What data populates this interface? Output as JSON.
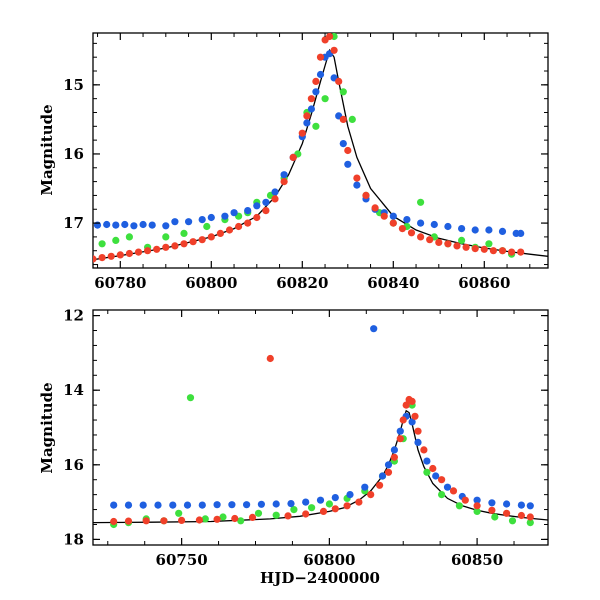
{
  "chart_data": [
    {
      "type": "scatter",
      "xlabel": "",
      "ylabel": "Magnitude",
      "xlim": [
        60774,
        60874
      ],
      "ylim": [
        17.65,
        14.25
      ],
      "y_inverted": true,
      "x_ticks": [
        60780,
        60800,
        60820,
        60840,
        60860
      ],
      "y_ticks": [
        15,
        16,
        17
      ],
      "colors": {
        "blue": "#1f5fe0",
        "green": "#3ee03e",
        "red": "#f0402a",
        "model": "#000000"
      },
      "series": [
        {
          "color": "blue",
          "x": [
            60775,
            60777,
            60779,
            60781,
            60783,
            60785,
            60787,
            60790,
            60792,
            60795,
            60798,
            60800,
            60803,
            60805,
            60808,
            60810,
            60812,
            60814,
            60816,
            60818,
            60820,
            60821,
            60822,
            60823,
            60824,
            60825,
            60826,
            60827,
            60828,
            60829,
            60830,
            60832,
            60834,
            60836,
            60838,
            60840,
            60843,
            60846,
            60849,
            60852,
            60855,
            60858,
            60861,
            60864,
            60867,
            60868
          ],
          "y": [
            17.03,
            17.02,
            17.03,
            17.02,
            17.04,
            17.02,
            17.03,
            17.04,
            16.98,
            16.98,
            16.95,
            16.92,
            16.9,
            16.85,
            16.82,
            16.75,
            16.7,
            16.55,
            16.3,
            16.05,
            15.75,
            15.55,
            15.35,
            15.1,
            14.85,
            14.6,
            14.55,
            14.9,
            15.45,
            15.85,
            16.15,
            16.45,
            16.65,
            16.8,
            16.85,
            16.9,
            16.95,
            17.0,
            17.02,
            17.05,
            17.08,
            17.1,
            17.1,
            17.12,
            17.15,
            17.15
          ]
        },
        {
          "color": "green",
          "x": [
            60776,
            60779,
            60782,
            60786,
            60790,
            60794,
            60799,
            60803,
            60806,
            60808,
            60810,
            60813,
            60816,
            60819,
            60821,
            60823,
            60825,
            60827,
            60829,
            60831,
            60834,
            60837,
            60840,
            60843,
            60846,
            60849,
            60852,
            60855,
            60858,
            60861,
            60864,
            60866
          ],
          "y": [
            17.3,
            17.25,
            17.2,
            17.35,
            17.2,
            17.15,
            17.05,
            16.95,
            16.9,
            16.85,
            16.7,
            16.6,
            16.35,
            16.0,
            15.4,
            15.6,
            15.2,
            14.3,
            15.1,
            15.5,
            16.6,
            16.85,
            17.0,
            17.05,
            16.7,
            17.2,
            17.3,
            17.25,
            17.35,
            17.3,
            17.4,
            17.45
          ]
        },
        {
          "color": "red",
          "x": [
            60774,
            60776,
            60778,
            60780,
            60782,
            60784,
            60786,
            60788,
            60790,
            60792,
            60794,
            60796,
            60798,
            60800,
            60802,
            60804,
            60806,
            60808,
            60810,
            60812,
            60814,
            60816,
            60818,
            60820,
            60821,
            60822,
            60823,
            60824,
            60825,
            60826,
            60827,
            60828,
            60829,
            60830,
            60832,
            60834,
            60836,
            60838,
            60840,
            60842,
            60844,
            60846,
            60848,
            60850,
            60852,
            60854,
            60856,
            60858,
            60860,
            60862,
            60864,
            60866,
            60868
          ],
          "y": [
            17.52,
            17.5,
            17.48,
            17.46,
            17.44,
            17.42,
            17.4,
            17.38,
            17.35,
            17.33,
            17.3,
            17.27,
            17.24,
            17.2,
            17.15,
            17.1,
            17.05,
            17.0,
            16.92,
            16.82,
            16.65,
            16.4,
            16.05,
            15.7,
            15.45,
            15.2,
            14.95,
            14.6,
            14.35,
            14.3,
            14.5,
            14.95,
            15.5,
            15.95,
            16.35,
            16.6,
            16.78,
            16.9,
            17.0,
            17.08,
            17.14,
            17.2,
            17.24,
            17.28,
            17.3,
            17.33,
            17.35,
            17.37,
            17.38,
            17.4,
            17.4,
            17.42,
            17.42
          ]
        },
        {
          "color": "model",
          "line": true,
          "x": [
            60774,
            60780,
            60790,
            60800,
            60805,
            60810,
            60814,
            60817,
            60820,
            60822,
            60824,
            60825,
            60826,
            60827,
            60828,
            60830,
            60832,
            60835,
            60840,
            60845,
            60850,
            60855,
            60860,
            60865,
            60870,
            60874
          ],
          "y": [
            17.53,
            17.47,
            17.36,
            17.2,
            17.08,
            16.9,
            16.62,
            16.3,
            15.85,
            15.42,
            14.95,
            14.72,
            14.5,
            14.6,
            14.95,
            15.6,
            16.05,
            16.5,
            16.9,
            17.1,
            17.22,
            17.3,
            17.36,
            17.41,
            17.45,
            17.48
          ]
        }
      ]
    },
    {
      "type": "scatter",
      "xlabel": "HJD−2400000",
      "ylabel": "Magnitude",
      "xlim": [
        60720,
        60874
      ],
      "ylim": [
        18.15,
        11.85
      ],
      "y_inverted": true,
      "x_ticks": [
        60750,
        60800,
        60850
      ],
      "y_ticks": [
        12,
        14,
        16,
        18
      ],
      "colors": {
        "blue": "#1f5fe0",
        "green": "#3ee03e",
        "red": "#f0402a",
        "model": "#000000"
      },
      "series": [
        {
          "color": "blue",
          "x": [
            60727,
            60732,
            60737,
            60742,
            60747,
            60752,
            60757,
            60762,
            60767,
            60772,
            60777,
            60782,
            60787,
            60792,
            60797,
            60802,
            60807,
            60812,
            60815,
            60818,
            60820,
            60822,
            60824,
            60826,
            60828,
            60830,
            60833,
            60836,
            60840,
            60845,
            60850,
            60855,
            60860,
            60865,
            60868
          ],
          "y": [
            17.08,
            17.08,
            17.08,
            17.08,
            17.08,
            17.08,
            17.08,
            17.07,
            17.07,
            17.07,
            17.06,
            17.05,
            17.04,
            17.0,
            16.95,
            16.88,
            16.8,
            16.6,
            12.35,
            16.3,
            16.0,
            15.6,
            15.1,
            14.7,
            14.85,
            15.4,
            15.9,
            16.3,
            16.6,
            16.85,
            16.95,
            17.02,
            17.05,
            17.08,
            17.1
          ]
        },
        {
          "color": "green",
          "x": [
            60727,
            60732,
            60738,
            60744,
            60749,
            60753,
            60758,
            60764,
            60770,
            60776,
            60782,
            60788,
            60794,
            60800,
            60806,
            60812,
            60818,
            60822,
            60825,
            60828,
            60833,
            60838,
            60844,
            60850,
            60856,
            60862,
            60868
          ],
          "y": [
            17.6,
            17.55,
            17.45,
            17.5,
            17.3,
            14.2,
            17.45,
            17.4,
            17.5,
            17.3,
            17.35,
            17.2,
            17.15,
            17.05,
            16.9,
            16.7,
            16.3,
            15.9,
            15.3,
            14.4,
            16.2,
            16.8,
            17.1,
            17.25,
            17.4,
            17.5,
            17.55
          ]
        },
        {
          "color": "red",
          "x": [
            60727,
            60732,
            60738,
            60744,
            60750,
            60756,
            60762,
            60768,
            60774,
            60780,
            60786,
            60792,
            60798,
            60802,
            60806,
            60810,
            60814,
            60817,
            60820,
            60822,
            60824,
            60825,
            60826,
            60827,
            60828,
            60829,
            60830,
            60832,
            60835,
            60838,
            60842,
            60846,
            60850,
            60855,
            60860,
            60865,
            60868
          ],
          "y": [
            17.52,
            17.51,
            17.5,
            17.5,
            17.49,
            17.48,
            17.46,
            17.44,
            17.41,
            13.15,
            17.37,
            17.32,
            17.25,
            17.18,
            17.1,
            17.0,
            16.8,
            16.55,
            16.2,
            15.8,
            15.3,
            14.8,
            14.4,
            14.25,
            14.3,
            14.7,
            15.1,
            15.6,
            16.1,
            16.4,
            16.7,
            16.95,
            17.1,
            17.22,
            17.3,
            17.36,
            17.4
          ]
        },
        {
          "color": "model",
          "line": true,
          "x": [
            60720,
            60740,
            60760,
            60780,
            60790,
            60800,
            60805,
            60810,
            60814,
            60818,
            60820,
            60822,
            60824,
            60825,
            60826,
            60827,
            60828,
            60830,
            60832,
            60835,
            60840,
            60845,
            60850,
            60855,
            60860,
            60865,
            60870,
            60874
          ],
          "y": [
            17.55,
            17.54,
            17.52,
            17.45,
            17.38,
            17.25,
            17.15,
            16.95,
            16.7,
            16.3,
            16.0,
            15.6,
            15.1,
            14.8,
            14.55,
            14.6,
            14.9,
            15.6,
            16.05,
            16.5,
            16.9,
            17.1,
            17.22,
            17.3,
            17.36,
            17.41,
            17.45,
            17.48
          ]
        }
      ]
    }
  ]
}
